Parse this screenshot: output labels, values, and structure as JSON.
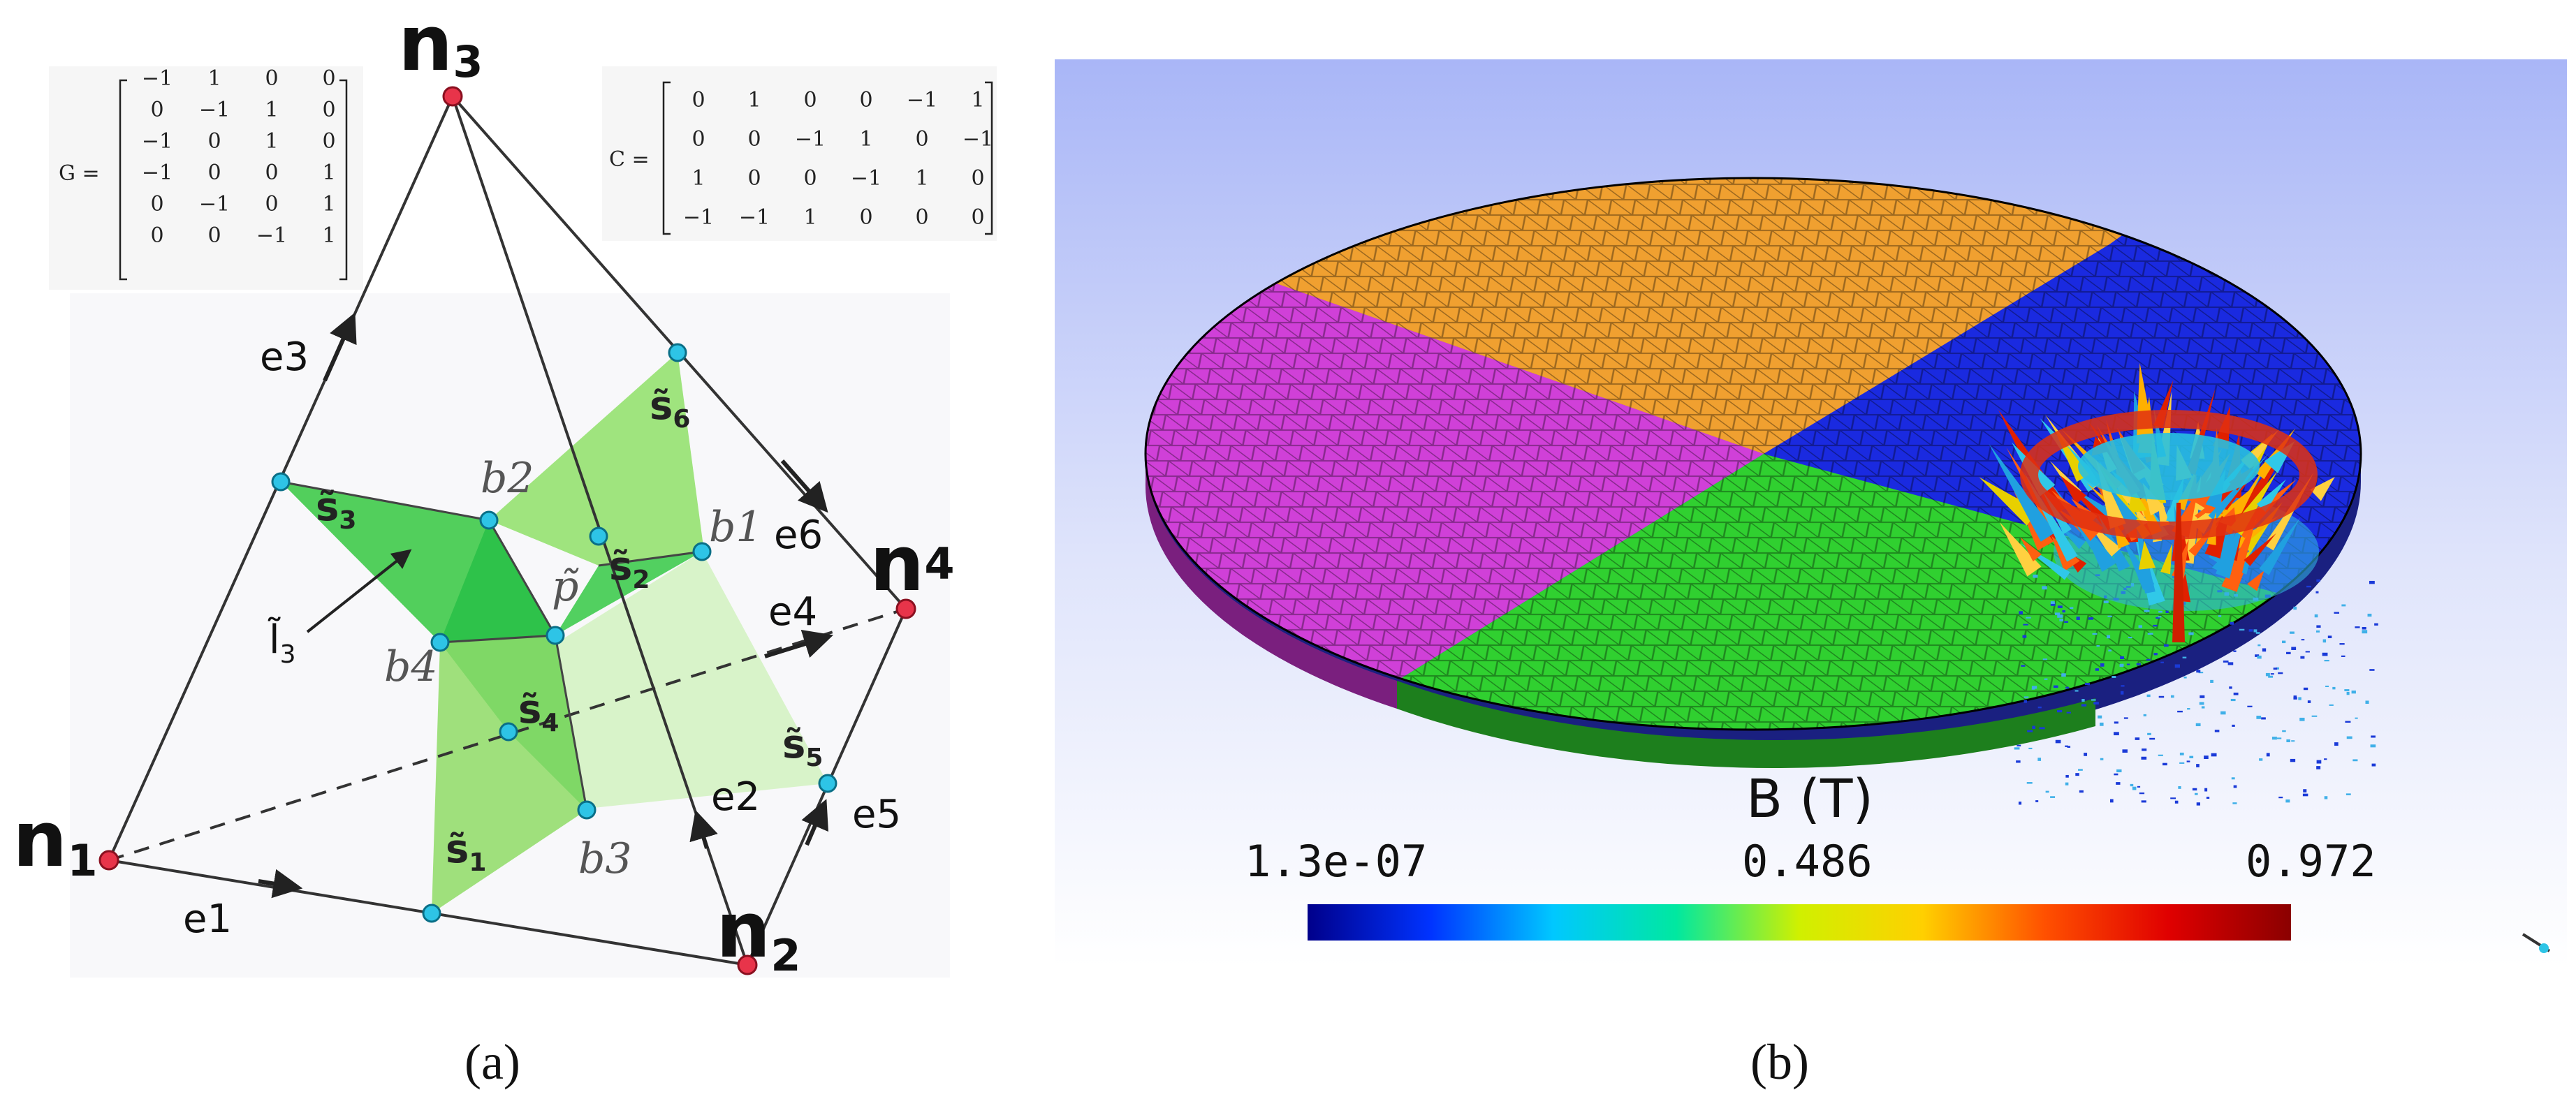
{
  "panel_a": {
    "caption": "(a)",
    "nodes": [
      {
        "label": "n",
        "sub": "3"
      },
      {
        "label": "n",
        "sub": "4"
      },
      {
        "label": "n",
        "sub": "1"
      },
      {
        "label": "n",
        "sub": "2"
      }
    ],
    "edges": [
      "e3",
      "e6",
      "e4",
      "e1",
      "e2",
      "e5"
    ],
    "points": [
      "b2",
      "b1",
      "b4",
      "b3",
      "p̃"
    ],
    "faces": [
      {
        "label": "s̃",
        "sub": "6"
      },
      {
        "label": "s̃",
        "sub": "3"
      },
      {
        "label": "s̃",
        "sub": "2"
      },
      {
        "label": "s̃",
        "sub": "4"
      },
      {
        "label": "s̃",
        "sub": "5"
      },
      {
        "label": "s̃",
        "sub": "1"
      }
    ],
    "line_label": {
      "label": "l̃",
      "sub": "3"
    },
    "matrix_g": {
      "name": "G =",
      "rows": [
        [
          "−1",
          "1",
          "0",
          "0"
        ],
        [
          "0",
          "−1",
          "1",
          "0"
        ],
        [
          "−1",
          "0",
          "1",
          "0"
        ],
        [
          "−1",
          "0",
          "0",
          "1"
        ],
        [
          "0",
          "−1",
          "0",
          "1"
        ],
        [
          "0",
          "0",
          "−1",
          "1"
        ]
      ]
    },
    "matrix_c": {
      "name": "C =",
      "rows": [
        [
          "0",
          "1",
          "0",
          "0",
          "−1",
          "1"
        ],
        [
          "0",
          "0",
          "−1",
          "1",
          "0",
          "−1"
        ],
        [
          "1",
          "0",
          "0",
          "−1",
          "1",
          "0"
        ],
        [
          "−1",
          "−1",
          "1",
          "0",
          "0",
          "0"
        ]
      ]
    },
    "colors": {
      "node": "#e8344a",
      "point": "#2ec4e6",
      "face_dark": "#2ec24a",
      "face_mid": "#8fe070",
      "face_light": "#d4f2c4",
      "edge": "#333333"
    }
  },
  "panel_b": {
    "caption": "(b)",
    "colorbar": {
      "title": "B (T)",
      "min_label": "1.3e-07",
      "mid_label": "0.486",
      "max_label": "0.972",
      "colormap": [
        "#00008b",
        "#0033ff",
        "#00c8ff",
        "#00e8a0",
        "#d0f000",
        "#ffd000",
        "#ff5000",
        "#e00000",
        "#8b0000"
      ]
    },
    "disc_sectors": [
      {
        "name": "top",
        "color": "#f0a030"
      },
      {
        "name": "left",
        "color": "#d040d8"
      },
      {
        "name": "bottom",
        "color": "#30d030"
      },
      {
        "name": "right",
        "color": "#1a2ae0"
      }
    ],
    "background_colors": {
      "top": "#b0bcf8",
      "bottom": "#ffffff"
    }
  }
}
